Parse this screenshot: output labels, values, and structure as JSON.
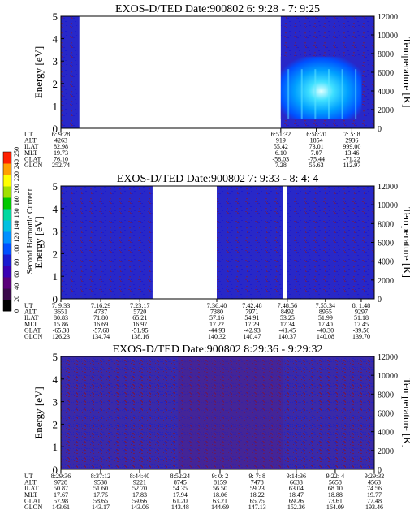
{
  "colorbar": {
    "label": "Second Harmonic Current",
    "ticks": [
      "0",
      "20",
      "40",
      "60",
      "80",
      "100",
      "120",
      "140",
      "160",
      "180",
      "200",
      "220",
      "240",
      "250"
    ],
    "colors": [
      "#000000",
      "#3a0a4a",
      "#5a007a",
      "#3a00b4",
      "#1a1ad0",
      "#0050ff",
      "#0090ff",
      "#00c0e0",
      "#00d8a0",
      "#00c800",
      "#a0e000",
      "#ffff00",
      "#ffa000",
      "#ff2000"
    ]
  },
  "chart_data": [
    {
      "type": "heatmap",
      "title": "EXOS-D/TED   Date:900802  6: 9:28 - 7: 9:25",
      "ylabel": "Energy [eV]",
      "ylabel_right": "Temperature [K]",
      "ylim": [
        0,
        5
      ],
      "y_ticks": [
        "0",
        "1",
        "2",
        "3",
        "4",
        "5"
      ],
      "ylim_right": [
        0,
        12000
      ],
      "y_right_ticks": [
        "0",
        "2000",
        "4000",
        "6000",
        "8000",
        "10000",
        "12000"
      ],
      "data_windows": [
        {
          "start": "6: 9:28",
          "end": "6:13:00"
        },
        {
          "start": "6:51:32",
          "end": "7: 9:25"
        }
      ],
      "hot_regions": [
        {
          "start": "6:51:32",
          "end": "7: 7:00",
          "energy": [
            0.4,
            3.2
          ]
        }
      ],
      "orbit_table": {
        "labels": [
          "UT",
          "ALT",
          "ILAT",
          "MLT",
          "GLAT",
          "GLON"
        ],
        "columns": [
          {
            "UT": "6: 9:28",
            "ALT": "4263",
            "ILAT": "82.98",
            "MLT": "19.73",
            "GLAT": "76.10",
            "GLON": "252.74"
          },
          {
            "UT": "6:51:32",
            "ALT": "919",
            "ILAT": "55.42",
            "MLT": "6.10",
            "GLAT": "-58.03",
            "GLON": "7.28"
          },
          {
            "UT": "6:58:20",
            "ALT": "1854",
            "ILAT": "73.01",
            "MLT": "7.07",
            "GLAT": "-75.44",
            "GLON": "55.63"
          },
          {
            "UT": "7: 5: 8",
            "ALT": "2936",
            "ILAT": "999.00",
            "MLT": "13.46",
            "GLAT": "-71.22",
            "GLON": "112.97"
          }
        ]
      }
    },
    {
      "type": "heatmap",
      "title": "EXOS-D/TED   Date:900802  7: 9:33 - 8: 4: 4",
      "ylabel": "Energy [eV]",
      "ylabel_right": "Temperature [K]",
      "ylim": [
        0,
        5
      ],
      "y_ticks": [
        "0",
        "1",
        "2",
        "3",
        "4",
        "5"
      ],
      "ylim_right": [
        0,
        12000
      ],
      "y_right_ticks": [
        "0",
        "2000",
        "4000",
        "6000",
        "8000",
        "10000",
        "12000"
      ],
      "data_windows": [
        {
          "start": "7: 9:33",
          "end": "7:25:30"
        },
        {
          "start": "7:36:40",
          "end": "7:48:10"
        },
        {
          "start": "7:48:56",
          "end": "8: 4: 4"
        }
      ],
      "hot_regions": [],
      "orbit_table": {
        "labels": [
          "UT",
          "ALT",
          "ILAT",
          "MLT",
          "GLAT",
          "GLON"
        ],
        "columns": [
          {
            "UT": "7: 9:33",
            "ALT": "3651",
            "ILAT": "80.83",
            "MLT": "15.86",
            "GLAT": "-65.38",
            "GLON": "126.23"
          },
          {
            "UT": "7:16:29",
            "ALT": "4737",
            "ILAT": "71.80",
            "MLT": "16.69",
            "GLAT": "-57.60",
            "GLON": "134.74"
          },
          {
            "UT": "7:23:17",
            "ALT": "5720",
            "ILAT": "65.21",
            "MLT": "16.97",
            "GLAT": "-51.95",
            "GLON": "138.16"
          },
          {
            "UT": "7:36:40",
            "ALT": "7380",
            "ILAT": "57.16",
            "MLT": "17.22",
            "GLAT": "-44.93",
            "GLON": "140.32"
          },
          {
            "UT": "7:42:48",
            "ALT": "7971",
            "ILAT": "54.91",
            "MLT": "17.29",
            "GLAT": "-42.93",
            "GLON": "140.47"
          },
          {
            "UT": "7:48:56",
            "ALT": "8492",
            "ILAT": "53.25",
            "MLT": "17.34",
            "GLAT": "-41.45",
            "GLON": "140.37"
          },
          {
            "UT": "7:55:34",
            "ALT": "8955",
            "ILAT": "51.99",
            "MLT": "17.40",
            "GLAT": "-40.30",
            "GLON": "140.08"
          },
          {
            "UT": "8: 1:48",
            "ALT": "9297",
            "ILAT": "51.18",
            "MLT": "17.45",
            "GLAT": "-39.56",
            "GLON": "139.70"
          }
        ]
      }
    },
    {
      "type": "heatmap",
      "title": "EXOS-D/TED   Date:900802  8:29:36 - 9:29:32",
      "ylabel": "Energy [eV]",
      "ylabel_right": "Temperature [K]",
      "ylim": [
        0,
        5
      ],
      "y_ticks": [
        "0",
        "1",
        "2",
        "3",
        "4",
        "5"
      ],
      "ylim_right": [
        0,
        12000
      ],
      "y_right_ticks": [
        "0",
        "2000",
        "4000",
        "6000",
        "8000",
        "10000",
        "12000"
      ],
      "data_windows": [
        {
          "start": "8:29:36",
          "end": "9:29:32"
        }
      ],
      "hot_regions": [],
      "orbit_table": {
        "labels": [
          "UT",
          "ALT",
          "ILAT",
          "MLT",
          "GLAT",
          "GLON"
        ],
        "columns": [
          {
            "UT": "8:29:36",
            "ALT": "9728",
            "ILAT": "50.87",
            "MLT": "17.67",
            "GLAT": "57.98",
            "GLON": "143.61"
          },
          {
            "UT": "8:37:12",
            "ALT": "9538",
            "ILAT": "51.60",
            "MLT": "17.75",
            "GLAT": "58.65",
            "GLON": "143.17"
          },
          {
            "UT": "8:44:40",
            "ALT": "9221",
            "ILAT": "52.70",
            "MLT": "17.83",
            "GLAT": "59.66",
            "GLON": "143.06"
          },
          {
            "UT": "8:52:24",
            "ALT": "8745",
            "ILAT": "54.35",
            "MLT": "17.94",
            "GLAT": "61.20",
            "GLON": "143.48"
          },
          {
            "UT": "9: 0: 2",
            "ALT": "8159",
            "ILAT": "56.50",
            "MLT": "18.06",
            "GLAT": "63.21",
            "GLON": "144.69"
          },
          {
            "UT": "9: 7: 8",
            "ALT": "7478",
            "ILAT": "59.23",
            "MLT": "18.22",
            "GLAT": "65.75",
            "GLON": "147.13"
          },
          {
            "UT": "9:14:36",
            "ALT": "6633",
            "ILAT": "63.04",
            "MLT": "18.47",
            "GLAT": "69.26",
            "GLON": "152.36"
          },
          {
            "UT": "9:22: 4",
            "ALT": "5658",
            "ILAT": "68.10",
            "MLT": "18.88",
            "GLAT": "73.61",
            "GLON": "164.09"
          },
          {
            "UT": "9:29:32",
            "ALT": "4563",
            "ILAT": "74.56",
            "MLT": "19.77",
            "GLAT": "77.48",
            "GLON": "193.46"
          }
        ]
      }
    }
  ]
}
